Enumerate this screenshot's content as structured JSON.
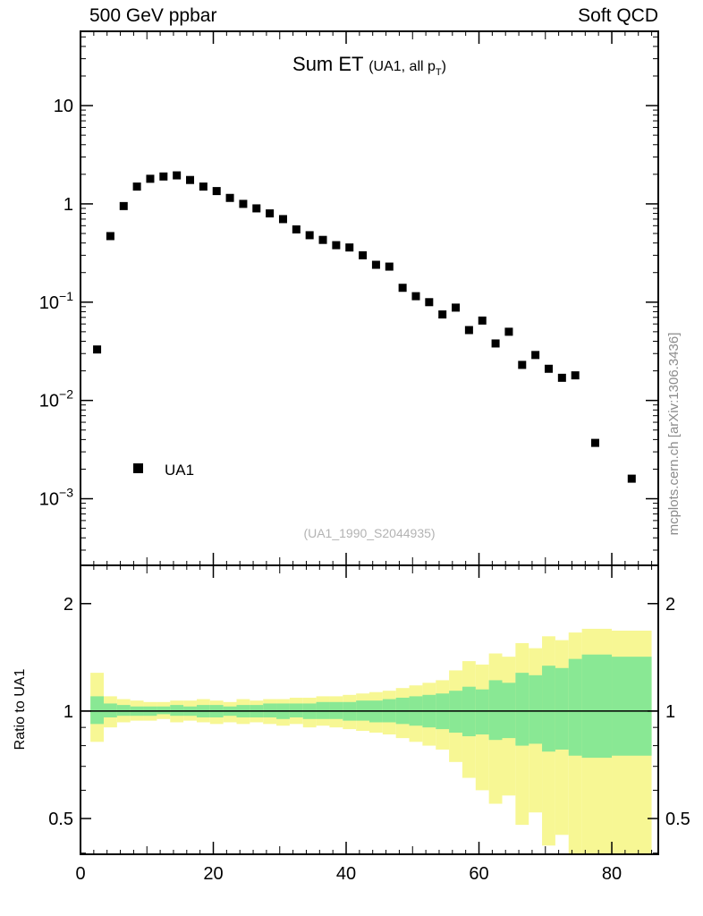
{
  "header": {
    "left": "500 GeV ppbar",
    "right": "Soft QCD"
  },
  "watermarks": {
    "analysis": "(UA1_1990_S2044935)",
    "side": "mcplots.cern.ch [arXiv:1306.3436]"
  },
  "chart_data": {
    "type": "scatter",
    "title": "Sum ET",
    "subtitle_pre": "(UA1, all p",
    "subtitle_sub": "T",
    "subtitle_post": ")",
    "ylabel_ratio": "Ratio to UA1",
    "legend": [
      {
        "label": "UA1",
        "marker": "filled-square",
        "color": "#000000"
      }
    ],
    "colors": {
      "frame": "#000000",
      "watermark": "#b3b3b3",
      "side_text": "#8c8c8c",
      "reference_line": "#000000"
    },
    "main": {
      "xscale": "linear",
      "yscale": "log",
      "xlim": [
        0,
        87
      ],
      "ylim": [
        0.00021,
        57
      ],
      "xticks": [
        {
          "v": 0,
          "label": "0"
        },
        {
          "v": 20,
          "label": "20"
        },
        {
          "v": 40,
          "label": "40"
        },
        {
          "v": 60,
          "label": "60"
        },
        {
          "v": 80,
          "label": "80"
        }
      ],
      "ytick_labels": [
        {
          "v": 10,
          "mant": "10",
          "exp": ""
        },
        {
          "v": 1,
          "mant": "1",
          "exp": ""
        },
        {
          "v": 0.1,
          "mant": "10",
          "exp": "−1"
        },
        {
          "v": 0.01,
          "mant": "10",
          "exp": "−2"
        },
        {
          "v": 0.001,
          "mant": "10",
          "exp": "−3"
        }
      ],
      "series": [
        {
          "name": "UA1",
          "marker": "square",
          "color": "#000000",
          "x": [
            2.5,
            4.5,
            6.5,
            8.5,
            10.5,
            12.5,
            14.5,
            16.5,
            18.5,
            20.5,
            22.5,
            24.5,
            26.5,
            28.5,
            30.5,
            32.5,
            34.5,
            36.5,
            38.5,
            40.5,
            42.5,
            44.5,
            46.5,
            48.5,
            50.5,
            52.5,
            54.5,
            56.5,
            58.5,
            60.5,
            62.5,
            64.5,
            66.5,
            68.5,
            70.5,
            72.5,
            74.5,
            77.5,
            83
          ],
          "y": [
            0.033,
            0.47,
            0.95,
            1.5,
            1.8,
            1.9,
            1.95,
            1.75,
            1.5,
            1.35,
            1.15,
            1.0,
            0.9,
            0.8,
            0.7,
            0.55,
            0.48,
            0.43,
            0.38,
            0.36,
            0.3,
            0.24,
            0.23,
            0.14,
            0.115,
            0.1,
            0.075,
            0.088,
            0.052,
            0.065,
            0.038,
            0.05,
            0.023,
            0.029,
            0.021,
            0.017,
            0.018,
            0.0037,
            0.0016
          ]
        }
      ]
    },
    "ratio": {
      "yscale": "log",
      "ylim": [
        0.397,
        2.56
      ],
      "reference_line": 1,
      "yticks_major": [
        {
          "v": 0.5,
          "label": "0.5"
        },
        {
          "v": 1,
          "label": "1"
        },
        {
          "v": 2,
          "label": "2"
        }
      ],
      "yticks_minor": [
        0.4,
        0.6,
        0.7,
        0.8,
        0.9
      ],
      "bands": {
        "edges": [
          1.5,
          3.5,
          5.5,
          7.5,
          9.5,
          11.5,
          13.5,
          15.5,
          17.5,
          19.5,
          21.5,
          23.5,
          25.5,
          27.5,
          29.5,
          31.5,
          33.5,
          35.5,
          37.5,
          39.5,
          41.5,
          43.5,
          45.5,
          47.5,
          49.5,
          51.5,
          53.5,
          55.5,
          57.5,
          59.5,
          61.5,
          63.5,
          65.5,
          67.5,
          69.5,
          71.5,
          73.5,
          75.5,
          80,
          86
        ],
        "yellow": {
          "color": "#f7f794",
          "lo": [
            0.82,
            0.9,
            0.93,
            0.94,
            0.94,
            0.95,
            0.93,
            0.94,
            0.93,
            0.92,
            0.93,
            0.92,
            0.93,
            0.92,
            0.91,
            0.92,
            0.9,
            0.91,
            0.9,
            0.89,
            0.88,
            0.87,
            0.86,
            0.84,
            0.82,
            0.8,
            0.78,
            0.72,
            0.65,
            0.6,
            0.55,
            0.58,
            0.48,
            0.52,
            0.42,
            0.45,
            0.36,
            0.3,
            0.32
          ],
          "hi": [
            1.28,
            1.1,
            1.08,
            1.07,
            1.06,
            1.06,
            1.07,
            1.07,
            1.08,
            1.07,
            1.06,
            1.08,
            1.07,
            1.08,
            1.08,
            1.09,
            1.09,
            1.1,
            1.1,
            1.11,
            1.12,
            1.13,
            1.14,
            1.16,
            1.18,
            1.2,
            1.22,
            1.3,
            1.38,
            1.35,
            1.45,
            1.42,
            1.55,
            1.5,
            1.62,
            1.58,
            1.66,
            1.7,
            1.68
          ]
        },
        "green": {
          "color": "#89e894",
          "lo": [
            0.92,
            0.96,
            0.97,
            0.97,
            0.97,
            0.98,
            0.97,
            0.97,
            0.96,
            0.96,
            0.97,
            0.96,
            0.96,
            0.96,
            0.95,
            0.96,
            0.95,
            0.95,
            0.95,
            0.94,
            0.94,
            0.93,
            0.93,
            0.92,
            0.91,
            0.9,
            0.89,
            0.87,
            0.85,
            0.86,
            0.83,
            0.84,
            0.8,
            0.81,
            0.77,
            0.78,
            0.75,
            0.74,
            0.75
          ],
          "hi": [
            1.1,
            1.05,
            1.04,
            1.03,
            1.03,
            1.03,
            1.04,
            1.03,
            1.04,
            1.04,
            1.03,
            1.04,
            1.04,
            1.05,
            1.05,
            1.05,
            1.05,
            1.06,
            1.06,
            1.06,
            1.07,
            1.07,
            1.08,
            1.09,
            1.1,
            1.11,
            1.12,
            1.14,
            1.17,
            1.15,
            1.22,
            1.2,
            1.28,
            1.26,
            1.34,
            1.32,
            1.4,
            1.44,
            1.42
          ]
        }
      }
    }
  }
}
